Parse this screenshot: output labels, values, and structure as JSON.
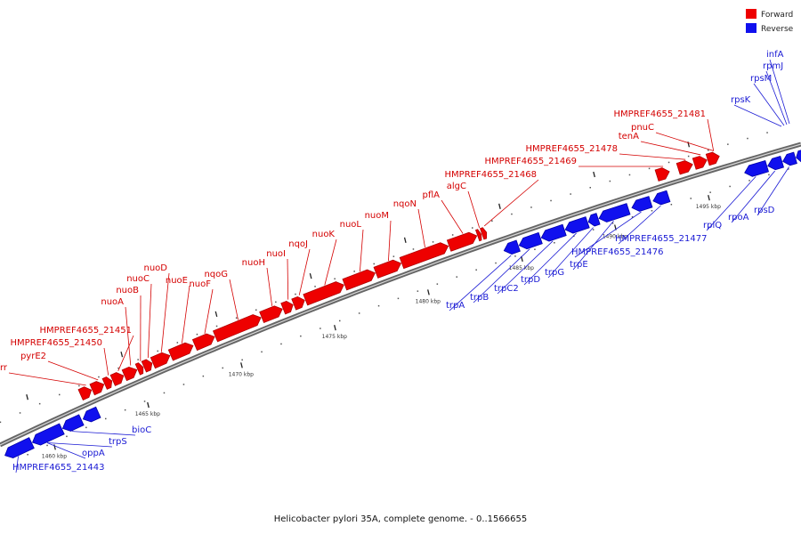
{
  "caption": "Helicobacter pylori 35A, complete genome. - 0..1566655",
  "legend": [
    {
      "label": "Forward",
      "color": "#ee0000"
    },
    {
      "label": "Reverse",
      "color": "#1010ee"
    }
  ],
  "scale": {
    "unit": "kbp",
    "ticks": [
      {
        "value": 1460,
        "label": "1460 kbp"
      },
      {
        "value": 1465,
        "label": "1465 kbp"
      },
      {
        "value": 1470,
        "label": "1470 kbp"
      },
      {
        "value": 1475,
        "label": "1475 kbp"
      },
      {
        "value": 1480,
        "label": "1480 kbp"
      },
      {
        "value": 1485,
        "label": "1485 kbp"
      },
      {
        "value": 1490,
        "label": "1490 kbp"
      },
      {
        "value": 1495,
        "label": "1495 kbp"
      }
    ]
  },
  "genes": {
    "forward": [
      "frr",
      "pyrE2",
      "HMPREF4655_21450",
      "HMPREF4655_21451",
      "nuoA",
      "nuoB",
      "nuoC",
      "nuoD",
      "nuoE",
      "nuoF",
      "nqoG",
      "nuoH",
      "nuoI",
      "nqoJ",
      "nuoK",
      "nuoL",
      "nuoM",
      "nqoN",
      "pflA",
      "algC",
      "HMPREF4655_21468",
      "HMPREF4655_21469",
      "HMPREF4655_21478",
      "tenA",
      "pnuC",
      "HMPREF4655_21481"
    ],
    "reverse": [
      "HMPREF4655_21443",
      "oppA",
      "trpS",
      "bioC",
      "trpA",
      "trpB",
      "trpC2",
      "trpD",
      "trpG",
      "trpE",
      "HMPREF4655_21476",
      "HMPREF4655_21477",
      "rplQ",
      "rpoA",
      "rpsD",
      "rpsK",
      "rpsM",
      "rpmJ",
      "infA"
    ]
  }
}
